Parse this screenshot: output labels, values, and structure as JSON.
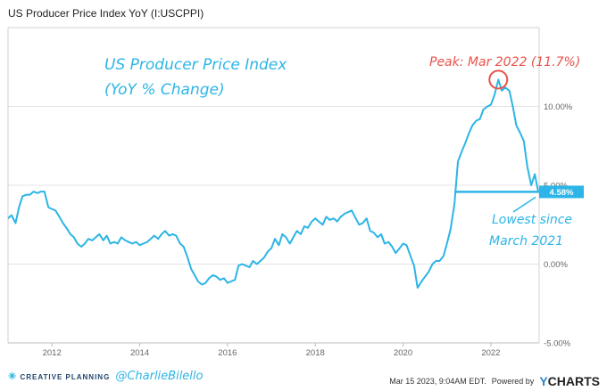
{
  "title": "US Producer Price Index YoY (I:USCPPI)",
  "footer": {
    "brand": "CREATIVE PLANNING",
    "handle": "@CharlieBilello",
    "timestamp": "Mar 15 2023, 9:04AM EDT.",
    "powered_by": "Powered by",
    "ycharts_y": "Y",
    "ycharts_rest": "CHARTS"
  },
  "chart_data": {
    "type": "line",
    "title": "US Producer Price Index YoY (I:USCPPI)",
    "xlabel": "",
    "ylabel": "",
    "xlim": [
      2011.0,
      2023.1
    ],
    "ylim": [
      -5,
      15
    ],
    "xticks": [
      2012,
      2014,
      2016,
      2018,
      2020,
      2022
    ],
    "yticks": [
      {
        "value": 10,
        "label": "10.00%"
      },
      {
        "value": 5,
        "label": "5.00%"
      },
      {
        "value": 0,
        "label": "0.00%"
      },
      {
        "value": -5,
        "label": "-5.00%"
      }
    ],
    "grid": true,
    "legend": "none",
    "color": "#2cb5e6",
    "last_value_label": "4.58%",
    "annotations": {
      "heading_line1": "US Producer Price Index",
      "heading_line2": "(YoY % Change)",
      "peak": "Peak: Mar 2022 (11.7%)",
      "low_line1": "Lowest since",
      "low_line2": "March 2021"
    },
    "series": [
      {
        "x": [
          2011.0,
          2011.08,
          2011.17,
          2011.25,
          2011.33,
          2011.42,
          2011.5,
          2011.58,
          2011.67,
          2011.75,
          2011.83,
          2011.92,
          2012.0,
          2012.08,
          2012.17,
          2012.25,
          2012.33,
          2012.42,
          2012.5,
          2012.58,
          2012.67,
          2012.75,
          2012.83,
          2012.92,
          2013.0,
          2013.08,
          2013.17,
          2013.25,
          2013.33,
          2013.42,
          2013.5,
          2013.58,
          2013.67,
          2013.75,
          2013.83,
          2013.92,
          2014.0,
          2014.08,
          2014.17,
          2014.25,
          2014.33,
          2014.42,
          2014.5,
          2014.58,
          2014.67,
          2014.75,
          2014.83,
          2014.92,
          2015.0,
          2015.08,
          2015.17,
          2015.25,
          2015.33,
          2015.42,
          2015.5,
          2015.58,
          2015.67,
          2015.75,
          2015.83,
          2015.92,
          2016.0,
          2016.08,
          2016.17,
          2016.25,
          2016.33,
          2016.42,
          2016.5,
          2016.58,
          2016.67,
          2016.75,
          2016.83,
          2016.92,
          2017.0,
          2017.08,
          2017.17,
          2017.25,
          2017.33,
          2017.42,
          2017.5,
          2017.58,
          2017.67,
          2017.75,
          2017.83,
          2017.92,
          2018.0,
          2018.08,
          2018.17,
          2018.25,
          2018.33,
          2018.42,
          2018.5,
          2018.58,
          2018.67,
          2018.75,
          2018.83,
          2018.92,
          2019.0,
          2019.08,
          2019.17,
          2019.25,
          2019.33,
          2019.42,
          2019.5,
          2019.58,
          2019.67,
          2019.75,
          2019.83,
          2019.92,
          2020.0,
          2020.08,
          2020.17,
          2020.25,
          2020.33,
          2020.42,
          2020.5,
          2020.58,
          2020.67,
          2020.75,
          2020.83,
          2020.92,
          2021.0,
          2021.08,
          2021.17,
          2021.25,
          2021.33,
          2021.42,
          2021.5,
          2021.58,
          2021.67,
          2021.75,
          2021.83,
          2021.92,
          2022.0,
          2022.08,
          2022.17,
          2022.25,
          2022.33,
          2022.42,
          2022.5,
          2022.58,
          2022.67,
          2022.75,
          2022.83,
          2022.92,
          2023.0,
          2023.08
        ],
        "y": [
          2.9,
          3.1,
          2.6,
          3.6,
          4.3,
          4.4,
          4.4,
          4.6,
          4.5,
          4.6,
          4.6,
          3.6,
          3.5,
          3.4,
          3.0,
          2.6,
          2.3,
          1.9,
          1.7,
          1.3,
          1.1,
          1.3,
          1.6,
          1.5,
          1.7,
          1.9,
          1.5,
          1.8,
          1.3,
          1.4,
          1.3,
          1.7,
          1.5,
          1.4,
          1.3,
          1.4,
          1.2,
          1.3,
          1.4,
          1.6,
          1.8,
          1.6,
          1.9,
          2.1,
          1.8,
          1.9,
          1.8,
          1.3,
          1.1,
          0.5,
          -0.3,
          -0.7,
          -1.1,
          -1.3,
          -1.2,
          -0.9,
          -0.7,
          -0.8,
          -1.0,
          -0.9,
          -1.2,
          -1.1,
          -1.0,
          -0.1,
          0.0,
          -0.1,
          -0.2,
          0.2,
          0.0,
          0.2,
          0.4,
          0.8,
          1.0,
          1.6,
          1.2,
          1.9,
          1.7,
          1.3,
          1.7,
          2.1,
          1.9,
          2.4,
          2.3,
          2.7,
          2.9,
          2.7,
          2.5,
          3.0,
          2.8,
          2.9,
          2.7,
          3.0,
          3.2,
          3.3,
          3.4,
          2.9,
          2.5,
          2.6,
          2.9,
          2.1,
          2.0,
          1.7,
          1.9,
          1.3,
          1.4,
          1.1,
          0.7,
          1.0,
          1.3,
          1.2,
          0.5,
          -0.1,
          -1.5,
          -1.1,
          -0.8,
          -0.5,
          0.0,
          0.2,
          0.2,
          0.5,
          1.3,
          2.2,
          3.8,
          6.5,
          7.1,
          7.7,
          8.3,
          8.8,
          9.1,
          9.2,
          9.8,
          10.0,
          10.1,
          10.7,
          11.7,
          11.0,
          11.2,
          11.0,
          10.0,
          8.8,
          8.3,
          7.8,
          6.2,
          5.0,
          5.7,
          4.58
        ]
      }
    ]
  }
}
